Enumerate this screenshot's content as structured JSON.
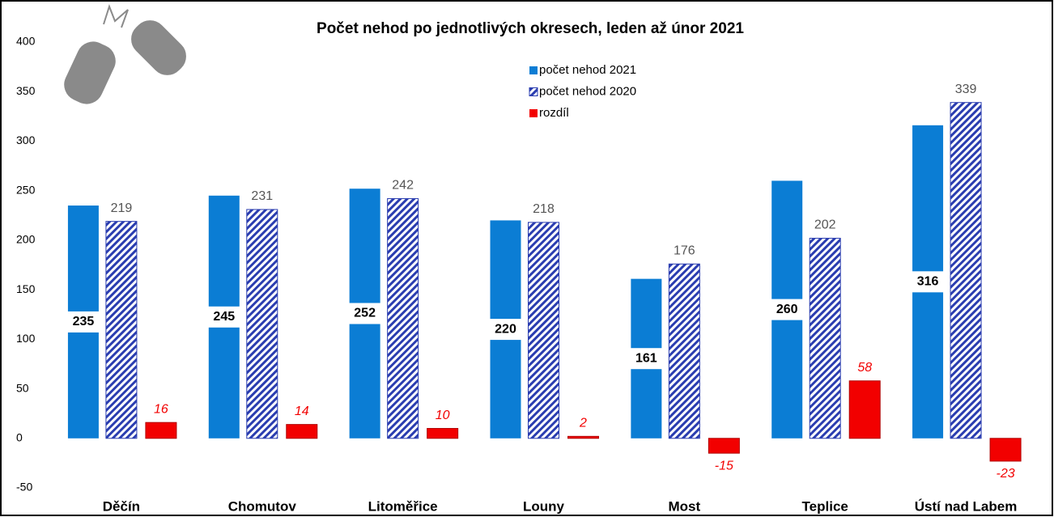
{
  "chart_data": {
    "type": "bar",
    "title": "Počet nehod po jednotlivých okresech, leden až únor 2021",
    "categories": [
      "Děčín",
      "Chomutov",
      "Litoměřice",
      "Louny",
      "Most",
      "Teplice",
      "Ústí nad Labem"
    ],
    "series": [
      {
        "name": "počet nehod 2021",
        "color": "#0b7dd4",
        "values": [
          235,
          245,
          252,
          220,
          161,
          260,
          316
        ]
      },
      {
        "name": "počet nehod 2020",
        "color": "#2a3db0",
        "values": [
          219,
          231,
          242,
          218,
          176,
          202,
          339
        ]
      },
      {
        "name": "rozdíl",
        "color": "#f20000",
        "values": [
          16,
          14,
          10,
          2,
          -15,
          58,
          -23
        ]
      }
    ],
    "ylim": [
      -50,
      400
    ],
    "yticks": [
      -50,
      0,
      50,
      100,
      150,
      200,
      250,
      300,
      350,
      400
    ],
    "grid": false
  }
}
